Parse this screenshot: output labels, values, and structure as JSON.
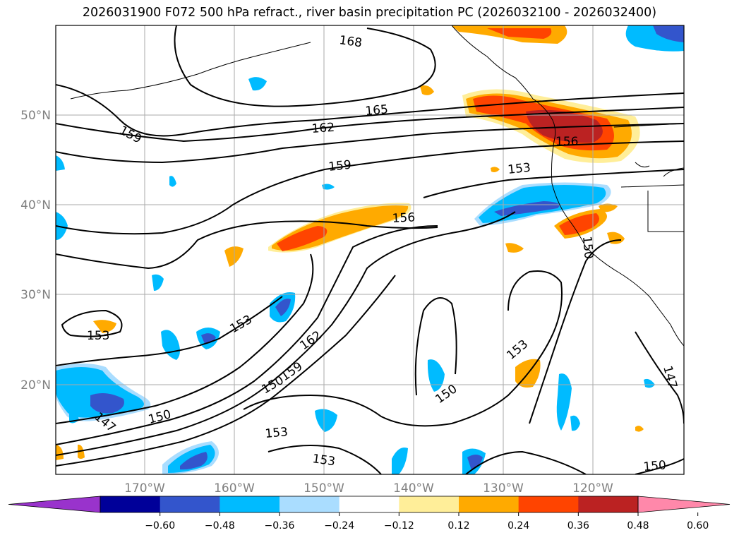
{
  "title": "2026031900 F072 500 hPa refract., river basin precipitation PC (2026032100 - 2026032400)",
  "lat_labels": [
    "50°N",
    "40°N",
    "30°N",
    "20°N"
  ],
  "lon_labels": [
    "170°W",
    "160°W",
    "150°W",
    "140°W",
    "130°W",
    "120°W"
  ],
  "contour_labels": [
    "168",
    "165",
    "162",
    "159",
    "159",
    "156",
    "156",
    "153",
    "153",
    "153",
    "153",
    "153",
    "162",
    "159",
    "150",
    "150",
    "147",
    "153",
    "150",
    "150",
    "147",
    "150"
  ],
  "colorbar": {
    "colors": [
      "#9933cc",
      "#000099",
      "#3355cc",
      "#00bbff",
      "#aaddff",
      "#ffffff",
      "#ffee99",
      "#ffaa00",
      "#ff4400",
      "#bb2222",
      "#ff88aa"
    ],
    "tick_labels": [
      "−0.60",
      "−0.48",
      "−0.36",
      "−0.24",
      "−0.12",
      "0.12",
      "0.24",
      "0.36",
      "0.48",
      "0.60"
    ]
  }
}
